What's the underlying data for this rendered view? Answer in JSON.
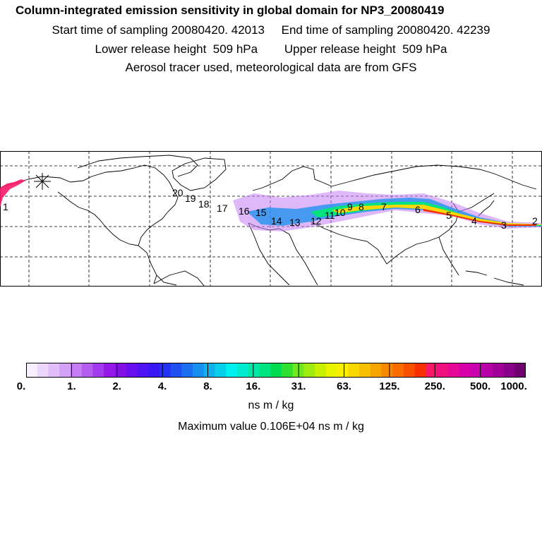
{
  "header": {
    "title": "Column-integrated emission sensitivity in global domain for NP3_20080419",
    "sampling": "Start time of sampling 20080420. 42013     End time of sampling 20080420. 42239",
    "release": "Lower release height  509 hPa        Upper release height  509 hPa",
    "tracer": "Aerosol tracer used, meteorological data are from GFS"
  },
  "map": {
    "day_markers": [
      "20",
      "19",
      "18",
      "17",
      "16",
      "15",
      "14",
      "13",
      "12",
      "11",
      "10",
      "9",
      "8",
      "7",
      "6",
      "5",
      "4",
      "3",
      "2",
      "1"
    ],
    "release_symbol": "asterisk-icon"
  },
  "colorbar": {
    "tick_labels": [
      "0.",
      "1.",
      "2.",
      "4.",
      "8.",
      "16.",
      "31.",
      "63.",
      "125.",
      "250.",
      "500.",
      "1000."
    ],
    "colors": [
      "#f7eefe",
      "#ecd6fc",
      "#e1bdfa",
      "#d4a1f8",
      "#c57ef5",
      "#b55cf1",
      "#a43aed",
      "#9418e8",
      "#8410e6",
      "#6a10f0",
      "#5014f4",
      "#3a18f6",
      "#2430f4",
      "#2050f2",
      "#1a70f0",
      "#1590ee",
      "#10b0ec",
      "#0acfea",
      "#00f0f0",
      "#00ecd0",
      "#00e8a8",
      "#00e480",
      "#00dc50",
      "#30e030",
      "#70e820",
      "#a0ec10",
      "#c8f000",
      "#e8f400",
      "#f8f000",
      "#f8d800",
      "#f8c000",
      "#f8a400",
      "#f88800",
      "#f86c00",
      "#f85000",
      "#f83000",
      "#f81868",
      "#f01080",
      "#e80898",
      "#d800a8",
      "#c800b0",
      "#b800a8",
      "#a00098",
      "#880088",
      "#700070"
    ],
    "units": "ns m / kg",
    "maximum_text": "Maximum value  0.106E+04 ns m / kg"
  }
}
